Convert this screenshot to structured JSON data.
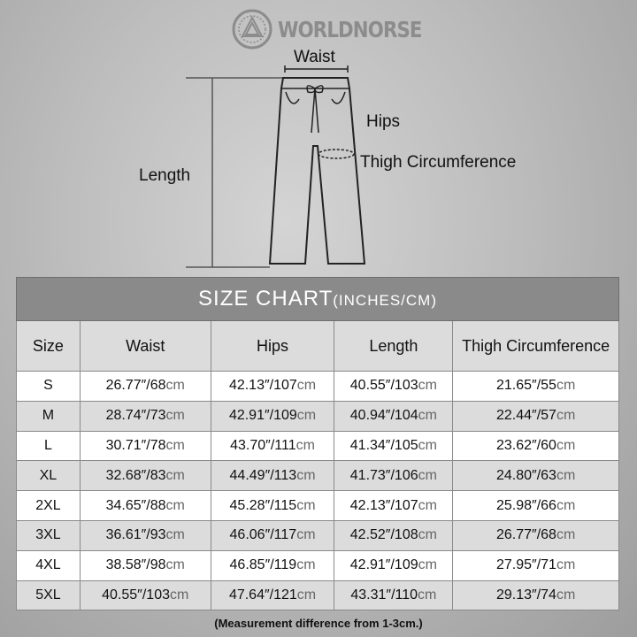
{
  "brand": {
    "name": "WORLDNORSE",
    "logo_icon": "valknut-circle-logo"
  },
  "diagram": {
    "labels": {
      "waist": "Waist",
      "hips": "Hips",
      "length": "Length",
      "thigh": "Thigh Circumference"
    },
    "icon": "pants-outline"
  },
  "table": {
    "title": "SIZE CHART",
    "title_units": "(INCHES/CM)",
    "headers": [
      "Size",
      "Waist",
      "Hips",
      "Length",
      "Thigh Circumference"
    ],
    "rows": [
      {
        "size": "S",
        "waist": [
          "26.77″/68",
          "cm"
        ],
        "hips": [
          "42.13″/107",
          "cm"
        ],
        "length": [
          "40.55″/103",
          "cm"
        ],
        "thigh": [
          "21.65″/55",
          "cm"
        ]
      },
      {
        "size": "M",
        "waist": [
          "28.74″/73",
          "cm"
        ],
        "hips": [
          "42.91″/109",
          "cm"
        ],
        "length": [
          "40.94″/104",
          "cm"
        ],
        "thigh": [
          "22.44″/57",
          "cm"
        ]
      },
      {
        "size": "L",
        "waist": [
          "30.71″/78",
          "cm"
        ],
        "hips": [
          "43.70″/111",
          "cm"
        ],
        "length": [
          "41.34″/105",
          "cm"
        ],
        "thigh": [
          "23.62″/60",
          "cm"
        ]
      },
      {
        "size": "XL",
        "waist": [
          "32.68″/83",
          "cm"
        ],
        "hips": [
          "44.49″/113",
          "cm"
        ],
        "length": [
          "41.73″/106",
          "cm"
        ],
        "thigh": [
          "24.80″/63",
          "cm"
        ]
      },
      {
        "size": "2XL",
        "waist": [
          "34.65″/88",
          "cm"
        ],
        "hips": [
          "45.28″/115",
          "cm"
        ],
        "length": [
          "42.13″/107",
          "cm"
        ],
        "thigh": [
          "25.98″/66",
          "cm"
        ]
      },
      {
        "size": "3XL",
        "waist": [
          "36.61″/93",
          "cm"
        ],
        "hips": [
          "46.06″/117",
          "cm"
        ],
        "length": [
          "42.52″/108",
          "cm"
        ],
        "thigh": [
          "26.77″/68",
          "cm"
        ]
      },
      {
        "size": "4XL",
        "waist": [
          "38.58″/98",
          "cm"
        ],
        "hips": [
          "46.85″/119",
          "cm"
        ],
        "length": [
          "42.91″/109",
          "cm"
        ],
        "thigh": [
          "27.95″/71",
          "cm"
        ]
      },
      {
        "size": "5XL",
        "waist": [
          "40.55″/103",
          "cm"
        ],
        "hips": [
          "47.64″/121",
          "cm"
        ],
        "length": [
          "43.31″/110",
          "cm"
        ],
        "thigh": [
          "29.13″/74",
          "cm"
        ]
      }
    ]
  },
  "note": "(Measurement difference from 1-3cm.)"
}
